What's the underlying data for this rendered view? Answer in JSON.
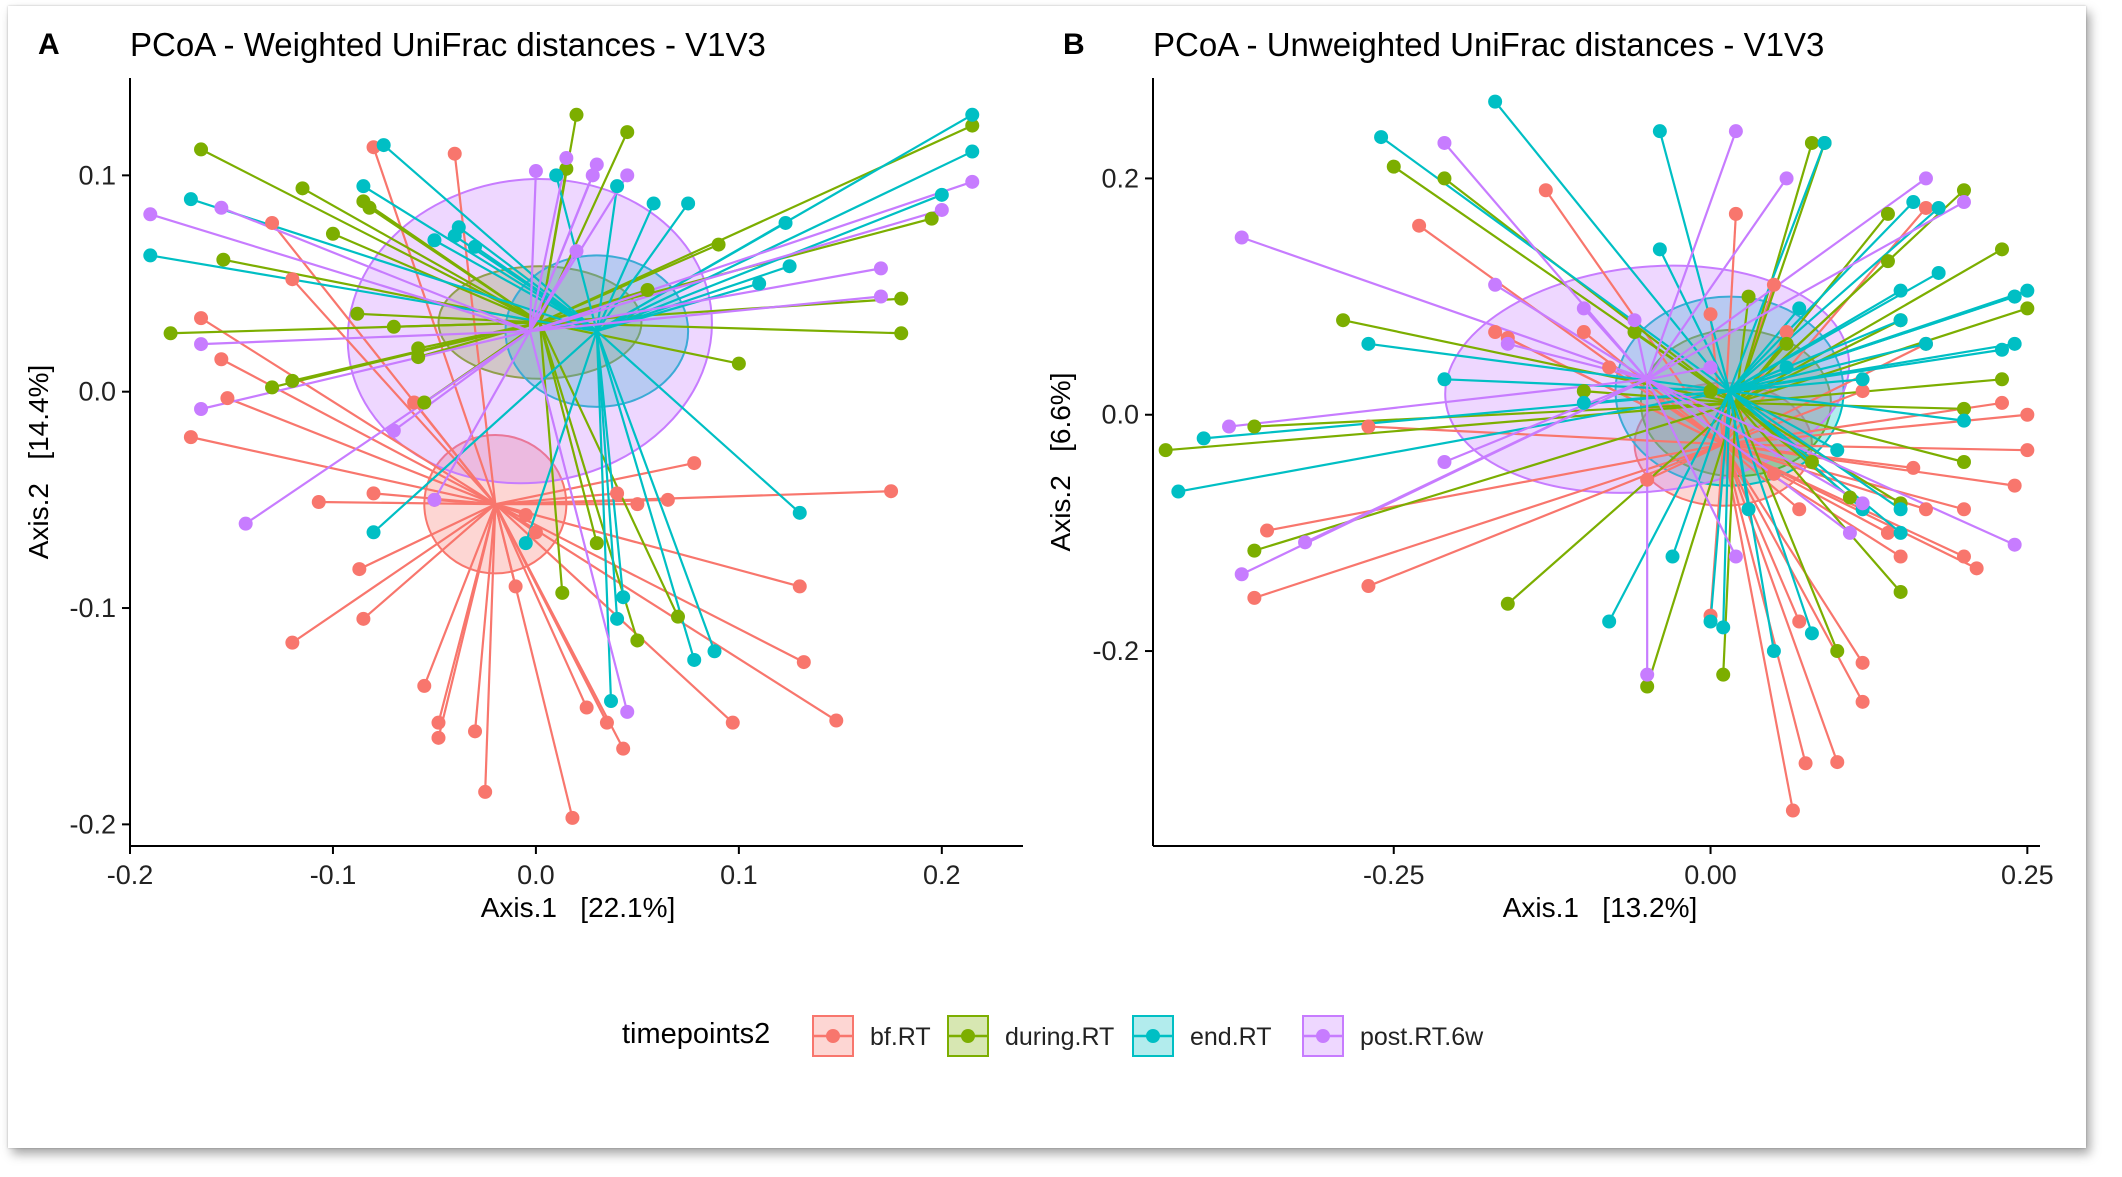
{
  "legend": {
    "title": "timepoints2",
    "entries": [
      {
        "key": "bf",
        "label": "bf.RT",
        "color": "#F8766D"
      },
      {
        "key": "dur",
        "label": "during.RT",
        "color": "#7CAE00"
      },
      {
        "key": "end",
        "label": "end.RT",
        "color": "#00BFC4"
      },
      {
        "key": "post",
        "label": "post.RT.6w",
        "color": "#C77CFF"
      }
    ]
  },
  "chart_data": [
    {
      "panel": "A",
      "type": "scatter",
      "title": "PCoA - Weighted UniFrac distances - V1V3",
      "xlabel": "Axis.1   [22.1%]",
      "ylabel": "Axis.2   [14.4%]",
      "xlim": [
        -0.2,
        0.24
      ],
      "ylim": [
        -0.21,
        0.145
      ],
      "xticks": [
        -0.2,
        -0.1,
        0.0,
        0.1,
        0.2
      ],
      "yticks": [
        -0.2,
        -0.1,
        0.0,
        0.1
      ],
      "xtick_labels": [
        "-0.2",
        "-0.1",
        "0.0",
        "0.1",
        "0.2"
      ],
      "ytick_labels": [
        "-0.2",
        "-0.1",
        "0.0",
        "0.1"
      ],
      "series": [
        {
          "key": "bf",
          "centroid": [
            -0.02,
            -0.052
          ],
          "ellipse": {
            "rx": 0.035,
            "ry": 0.032,
            "angle": 0
          },
          "points": [
            [
              -0.08,
              0.113
            ],
            [
              -0.04,
              0.11
            ],
            [
              -0.13,
              0.078
            ],
            [
              -0.12,
              0.052
            ],
            [
              -0.165,
              0.034
            ],
            [
              -0.155,
              0.015
            ],
            [
              -0.152,
              -0.003
            ],
            [
              -0.17,
              -0.021
            ],
            [
              -0.107,
              -0.051
            ],
            [
              -0.08,
              -0.047
            ],
            [
              -0.087,
              -0.082
            ],
            [
              -0.12,
              -0.116
            ],
            [
              -0.085,
              -0.105
            ],
            [
              -0.055,
              -0.136
            ],
            [
              -0.048,
              -0.153
            ],
            [
              -0.048,
              -0.16
            ],
            [
              -0.03,
              -0.157
            ],
            [
              -0.025,
              -0.185
            ],
            [
              0.018,
              -0.197
            ],
            [
              0.025,
              -0.146
            ],
            [
              0.035,
              -0.153
            ],
            [
              0.043,
              -0.165
            ],
            [
              -0.005,
              -0.057
            ],
            [
              -0.01,
              -0.09
            ],
            [
              0.04,
              -0.047
            ],
            [
              0.065,
              -0.05
            ],
            [
              0.078,
              -0.033
            ],
            [
              0.097,
              -0.153
            ],
            [
              0.13,
              -0.09
            ],
            [
              0.132,
              -0.125
            ],
            [
              0.148,
              -0.152
            ],
            [
              0.175,
              -0.046
            ],
            [
              0.05,
              -0.052
            ],
            [
              0.0,
              -0.065
            ],
            [
              -0.06,
              -0.005
            ],
            [
              -0.05,
              -0.05
            ]
          ]
        },
        {
          "key": "dur",
          "centroid": [
            0.002,
            0.032
          ],
          "ellipse": {
            "rx": 0.05,
            "ry": 0.026,
            "angle": 0
          },
          "points": [
            [
              -0.165,
              0.112
            ],
            [
              -0.115,
              0.094
            ],
            [
              -0.1,
              0.073
            ],
            [
              -0.085,
              0.088
            ],
            [
              -0.082,
              0.085
            ],
            [
              -0.154,
              0.061
            ],
            [
              -0.18,
              0.027
            ],
            [
              -0.12,
              0.005
            ],
            [
              -0.13,
              0.002
            ],
            [
              -0.088,
              0.036
            ],
            [
              -0.058,
              0.016
            ],
            [
              -0.055,
              -0.005
            ],
            [
              -0.058,
              0.02
            ],
            [
              0.02,
              0.128
            ],
            [
              0.015,
              0.103
            ],
            [
              0.045,
              0.12
            ],
            [
              0.09,
              0.068
            ],
            [
              0.055,
              0.047
            ],
            [
              0.1,
              0.013
            ],
            [
              0.18,
              0.043
            ],
            [
              0.18,
              0.027
            ],
            [
              0.195,
              0.08
            ],
            [
              0.215,
              0.123
            ],
            [
              0.03,
              -0.07
            ],
            [
              0.05,
              -0.115
            ],
            [
              0.07,
              -0.104
            ],
            [
              0.013,
              -0.093
            ],
            [
              -0.07,
              0.03
            ]
          ]
        },
        {
          "key": "end",
          "centroid": [
            0.03,
            0.028
          ],
          "ellipse": {
            "rx": 0.045,
            "ry": 0.035,
            "angle": 0
          },
          "points": [
            [
              -0.19,
              0.063
            ],
            [
              -0.17,
              0.089
            ],
            [
              -0.085,
              0.095
            ],
            [
              -0.075,
              0.114
            ],
            [
              -0.04,
              0.072
            ],
            [
              -0.038,
              0.076
            ],
            [
              -0.05,
              0.07
            ],
            [
              -0.03,
              0.067
            ],
            [
              0.01,
              0.1
            ],
            [
              0.04,
              0.095
            ],
            [
              0.058,
              0.087
            ],
            [
              0.075,
              0.087
            ],
            [
              0.11,
              0.05
            ],
            [
              0.125,
              0.058
            ],
            [
              0.123,
              0.078
            ],
            [
              0.2,
              0.091
            ],
            [
              0.215,
              0.128
            ],
            [
              0.215,
              0.111
            ],
            [
              0.13,
              -0.056
            ],
            [
              0.088,
              -0.12
            ],
            [
              0.078,
              -0.124
            ],
            [
              0.043,
              -0.095
            ],
            [
              0.037,
              -0.143
            ],
            [
              -0.08,
              -0.065
            ],
            [
              -0.005,
              -0.07
            ],
            [
              0.04,
              -0.105
            ]
          ]
        },
        {
          "key": "post",
          "centroid": [
            -0.003,
            0.028
          ],
          "ellipse": {
            "rx": 0.09,
            "ry": 0.07,
            "angle": -8
          },
          "points": [
            [
              -0.19,
              0.082
            ],
            [
              -0.155,
              0.085
            ],
            [
              -0.165,
              0.022
            ],
            [
              -0.165,
              -0.008
            ],
            [
              -0.143,
              -0.061
            ],
            [
              -0.07,
              -0.018
            ],
            [
              -0.05,
              -0.05
            ],
            [
              0.0,
              0.102
            ],
            [
              0.015,
              0.108
            ],
            [
              0.028,
              0.1
            ],
            [
              0.03,
              0.105
            ],
            [
              0.045,
              0.1
            ],
            [
              0.17,
              0.057
            ],
            [
              0.17,
              0.044
            ],
            [
              0.2,
              0.084
            ],
            [
              0.215,
              0.097
            ],
            [
              0.045,
              -0.148
            ],
            [
              0.02,
              0.065
            ]
          ]
        }
      ]
    },
    {
      "panel": "B",
      "type": "scatter",
      "title": "PCoA - Unweighted UniFrac distances - V1V3",
      "xlabel": "Axis.1   [13.2%]",
      "ylabel": "Axis.2   [6.6%]",
      "xlim": [
        -0.44,
        0.26
      ],
      "ylim": [
        -0.365,
        0.285
      ],
      "xticks": [
        -0.25,
        0.0,
        0.25
      ],
      "yticks": [
        -0.2,
        0.0,
        0.2
      ],
      "xtick_labels": [
        "-0.25",
        "0.00",
        "0.25"
      ],
      "ytick_labels": [
        "-0.2",
        "0.0",
        "0.2"
      ],
      "series": [
        {
          "key": "bf",
          "centroid": [
            0.01,
            -0.025
          ],
          "ellipse": {
            "rx": 0.07,
            "ry": 0.052,
            "angle": 0
          },
          "points": [
            [
              -0.23,
              0.16
            ],
            [
              -0.17,
              0.07
            ],
            [
              -0.16,
              0.065
            ],
            [
              -0.13,
              0.19
            ],
            [
              -0.1,
              0.07
            ],
            [
              -0.08,
              0.04
            ],
            [
              -0.27,
              -0.01
            ],
            [
              -0.35,
              -0.098
            ],
            [
              -0.36,
              -0.155
            ],
            [
              -0.27,
              -0.145
            ],
            [
              -0.05,
              -0.055
            ],
            [
              0.0,
              -0.17
            ],
            [
              0.0,
              0.085
            ],
            [
              0.02,
              0.17
            ],
            [
              0.07,
              -0.08
            ],
            [
              0.07,
              -0.175
            ],
            [
              0.075,
              -0.295
            ],
            [
              0.065,
              -0.335
            ],
            [
              0.1,
              -0.294
            ],
            [
              0.12,
              -0.243
            ],
            [
              0.12,
              -0.21
            ],
            [
              0.15,
              -0.12
            ],
            [
              0.17,
              -0.08
            ],
            [
              0.2,
              -0.08
            ],
            [
              0.2,
              -0.12
            ],
            [
              0.21,
              -0.13
            ],
            [
              0.23,
              0.01
            ],
            [
              0.25,
              0.0
            ],
            [
              0.25,
              -0.03
            ],
            [
              0.24,
              -0.06
            ],
            [
              0.16,
              -0.045
            ],
            [
              0.17,
              0.175
            ],
            [
              0.05,
              0.11
            ],
            [
              0.06,
              0.07
            ],
            [
              0.05,
              -0.05
            ],
            [
              0.17,
              0.06
            ],
            [
              0.14,
              -0.1
            ],
            [
              0.12,
              0.02
            ]
          ]
        },
        {
          "key": "dur",
          "centroid": [
            0.02,
            0.01
          ],
          "ellipse": {
            "rx": 0.075,
            "ry": 0.062,
            "angle": 0
          },
          "points": [
            [
              -0.25,
              0.21
            ],
            [
              -0.21,
              0.2
            ],
            [
              -0.29,
              0.08
            ],
            [
              -0.36,
              -0.01
            ],
            [
              -0.36,
              -0.115
            ],
            [
              -0.43,
              -0.03
            ],
            [
              -0.16,
              -0.16
            ],
            [
              -0.05,
              -0.23
            ],
            [
              0.01,
              -0.22
            ],
            [
              0.1,
              -0.2
            ],
            [
              0.11,
              -0.07
            ],
            [
              0.15,
              -0.075
            ],
            [
              0.15,
              -0.15
            ],
            [
              0.2,
              -0.04
            ],
            [
              0.2,
              0.005
            ],
            [
              0.23,
              0.03
            ],
            [
              0.25,
              0.09
            ],
            [
              0.23,
              0.14
            ],
            [
              0.2,
              0.19
            ],
            [
              0.14,
              0.17
            ],
            [
              0.08,
              0.23
            ],
            [
              0.09,
              0.23
            ],
            [
              0.03,
              0.1
            ],
            [
              0.06,
              0.06
            ],
            [
              0.0,
              0.02
            ],
            [
              -0.1,
              0.02
            ],
            [
              -0.06,
              0.07
            ],
            [
              0.14,
              0.13
            ],
            [
              0.15,
              0.08
            ],
            [
              0.08,
              -0.04
            ]
          ]
        },
        {
          "key": "end",
          "centroid": [
            0.015,
            0.02
          ],
          "ellipse": {
            "rx": 0.09,
            "ry": 0.08,
            "angle": 0
          },
          "points": [
            [
              -0.26,
              0.235
            ],
            [
              -0.17,
              0.265
            ],
            [
              -0.04,
              0.24
            ],
            [
              -0.04,
              0.14
            ],
            [
              0.09,
              0.23
            ],
            [
              -0.27,
              0.06
            ],
            [
              -0.21,
              0.03
            ],
            [
              -0.4,
              -0.02
            ],
            [
              -0.42,
              -0.065
            ],
            [
              -0.03,
              -0.12
            ],
            [
              -0.08,
              -0.175
            ],
            [
              0.0,
              -0.175
            ],
            [
              0.01,
              -0.18
            ],
            [
              0.03,
              -0.08
            ],
            [
              0.05,
              -0.2
            ],
            [
              0.08,
              -0.185
            ],
            [
              0.15,
              -0.08
            ],
            [
              0.15,
              -0.1
            ],
            [
              0.2,
              -0.005
            ],
            [
              0.24,
              0.06
            ],
            [
              0.24,
              0.1
            ],
            [
              0.25,
              0.105
            ],
            [
              0.24,
              0.1
            ],
            [
              0.23,
              0.055
            ],
            [
              0.18,
              0.175
            ],
            [
              0.16,
              0.18
            ],
            [
              0.17,
              0.06
            ],
            [
              0.18,
              0.12
            ],
            [
              0.12,
              0.03
            ],
            [
              0.1,
              -0.03
            ],
            [
              0.06,
              0.04
            ],
            [
              0.07,
              0.09
            ],
            [
              0.15,
              0.08
            ],
            [
              0.15,
              0.105
            ],
            [
              0.12,
              -0.08
            ],
            [
              -0.1,
              0.01
            ]
          ]
        },
        {
          "key": "post",
          "centroid": [
            -0.05,
            0.03
          ],
          "ellipse": {
            "rx": 0.16,
            "ry": 0.095,
            "angle": -6
          },
          "points": [
            [
              -0.37,
              0.15
            ],
            [
              -0.21,
              0.23
            ],
            [
              -0.17,
              0.11
            ],
            [
              -0.16,
              0.06
            ],
            [
              -0.1,
              0.09
            ],
            [
              -0.06,
              0.08
            ],
            [
              0.02,
              0.24
            ],
            [
              0.06,
              0.2
            ],
            [
              0.17,
              0.2
            ],
            [
              0.2,
              0.18
            ],
            [
              0.24,
              -0.11
            ],
            [
              0.12,
              -0.075
            ],
            [
              0.11,
              -0.1
            ],
            [
              0.02,
              -0.12
            ],
            [
              -0.05,
              -0.22
            ],
            [
              -0.32,
              -0.108
            ],
            [
              -0.37,
              -0.135
            ],
            [
              -0.38,
              -0.01
            ],
            [
              -0.21,
              -0.04
            ],
            [
              0.0,
              0.04
            ]
          ]
        }
      ]
    }
  ]
}
